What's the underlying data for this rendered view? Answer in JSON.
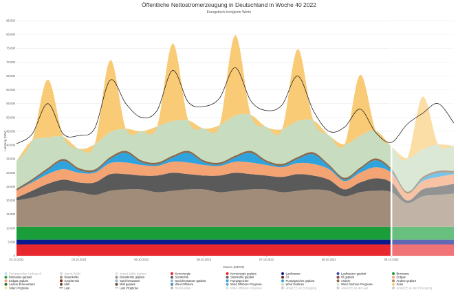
{
  "chart_data": {
    "type": "area",
    "title": "Öffentliche Nettostromerzeugung in Deutschland in Woche 40 2022",
    "subtitle": "Energetisch korrigierte Werte",
    "xlabel": "Datum (MESZ)",
    "ylabel": "Leistung (MW)",
    "ylim": [
      0,
      85000
    ],
    "y_ticks": [
      "0",
      "5.000",
      "10.000",
      "15.000",
      "20.000",
      "25.000",
      "30.000",
      "35.000",
      "40.000",
      "45.000",
      "50.000",
      "55.000",
      "60.000",
      "65.000",
      "70.000",
      "75.000",
      "80.000",
      "85.000"
    ],
    "x_tick_labels": [
      "03.10.2022",
      "04.10.2022",
      "05.10.2022",
      "06.10.2022",
      "07.10.2022",
      "08.10.2022",
      "09.10.2022"
    ],
    "grid": true,
    "forecast_start_hour": 144,
    "x": [
      0,
      6,
      12,
      18,
      24,
      30,
      36,
      42,
      48,
      54,
      60,
      66,
      72,
      78,
      84,
      90,
      96,
      102,
      108,
      114,
      120,
      126,
      132,
      138,
      144,
      150,
      156,
      162,
      168
    ],
    "series": [
      {
        "name": "Kernenergie",
        "color": "#e8282e",
        "values": [
          4100,
          4100,
          4100,
          4100,
          4100,
          4100,
          4100,
          4100,
          4100,
          4100,
          4100,
          4100,
          4100,
          4100,
          4100,
          4100,
          4100,
          4100,
          4100,
          4100,
          4100,
          4100,
          4100,
          4100,
          4100,
          4100,
          4100,
          4100,
          4100
        ]
      },
      {
        "name": "Laufwasser",
        "color": "#0a1a8c",
        "values": [
          1700,
          1700,
          1700,
          1700,
          1700,
          1700,
          1700,
          1700,
          1700,
          1700,
          1700,
          1700,
          1700,
          1700,
          1700,
          1700,
          1700,
          1700,
          1700,
          1700,
          1700,
          1700,
          1700,
          1700,
          1700,
          1700,
          1700,
          1700,
          1700
        ]
      },
      {
        "name": "Biomasse",
        "color": "#1a9e3a",
        "values": [
          4700,
          4700,
          4700,
          4700,
          4700,
          4700,
          4700,
          4700,
          4700,
          4700,
          4700,
          4700,
          4700,
          4700,
          4700,
          4700,
          4700,
          4700,
          4700,
          4700,
          4700,
          4700,
          4700,
          4700,
          4700,
          4700,
          4700,
          4700,
          4700
        ]
      },
      {
        "name": "Braunkohle",
        "color": "#a08c78",
        "values": [
          9500,
          10500,
          12000,
          13000,
          12500,
          11500,
          13000,
          13500,
          13500,
          12500,
          13000,
          13500,
          13500,
          12500,
          13000,
          13500,
          13500,
          12500,
          13000,
          13500,
          13000,
          11000,
          12500,
          13000,
          12500,
          8500,
          11000,
          11500,
          12000
        ]
      },
      {
        "name": "Steinkohle",
        "color": "#5a5a5a",
        "values": [
          1000,
          2500,
          3500,
          4000,
          3500,
          4500,
          6000,
          5500,
          5000,
          6000,
          6500,
          5500,
          5000,
          6000,
          6500,
          5500,
          5000,
          5500,
          6000,
          5000,
          4000,
          2500,
          3500,
          4500,
          3500,
          1000,
          2500,
          3000,
          3500
        ]
      },
      {
        "name": "Erdgas",
        "color": "#f4a373",
        "values": [
          2500,
          3000,
          3500,
          3800,
          3500,
          3500,
          4000,
          4200,
          3800,
          3500,
          4000,
          4200,
          3800,
          3500,
          4000,
          4200,
          3800,
          3500,
          4000,
          4200,
          3800,
          3000,
          3500,
          4000,
          3500,
          2500,
          3000,
          3500,
          3500
        ]
      },
      {
        "name": "Pumpspeicher",
        "color": "#2ea3de",
        "values": [
          0,
          500,
          1500,
          3000,
          1000,
          500,
          1500,
          3500,
          1000,
          500,
          1500,
          3500,
          1000,
          500,
          1500,
          3500,
          1000,
          500,
          1500,
          3500,
          1000,
          500,
          1200,
          2500,
          800,
          0,
          800,
          1500,
          500
        ]
      },
      {
        "name": "Andere",
        "color": "#8a6a4a",
        "values": [
          700,
          700,
          700,
          700,
          700,
          700,
          700,
          700,
          700,
          700,
          700,
          700,
          700,
          700,
          700,
          700,
          700,
          700,
          700,
          700,
          700,
          700,
          700,
          700,
          700,
          700,
          700,
          700,
          700
        ]
      },
      {
        "name": "Wind Onshore",
        "color": "#c8dcbf",
        "values": [
          10000,
          14000,
          11000,
          8000,
          7000,
          9000,
          9000,
          8000,
          10500,
          13000,
          12500,
          11000,
          11500,
          13500,
          14500,
          13000,
          12000,
          12500,
          13000,
          11500,
          10500,
          12000,
          11500,
          10000,
          8000,
          12000,
          10000,
          9500,
          9000
        ]
      },
      {
        "name": "Solar",
        "color": "#f9cb77",
        "values": [
          0,
          0,
          21000,
          0,
          0,
          0,
          26000,
          0,
          0,
          0,
          28000,
          0,
          0,
          0,
          29000,
          0,
          0,
          0,
          26000,
          0,
          0,
          0,
          22000,
          0,
          0,
          0,
          19000,
          0,
          0
        ]
      },
      {
        "name": "Last",
        "color": "#222222",
        "values": [
          40500,
          44000,
          55000,
          44000,
          43500,
          46000,
          63500,
          55000,
          50000,
          52500,
          67000,
          55500,
          54000,
          57000,
          68000,
          56000,
          52500,
          54500,
          65000,
          52500,
          45000,
          46500,
          53000,
          44500,
          41000,
          47500,
          51500,
          55000,
          48000
        ]
      }
    ],
    "legend": {
      "placement": "bottom",
      "entries": [
        {
          "name": "Pumpspeicher Verbrauch",
          "color": "#bfe0f0",
          "faded": true
        },
        {
          "name": "Import Saldo",
          "color": "#d8d8d8",
          "faded": true
        },
        {
          "name": "Import Saldo geplant",
          "color": "#e2e2e2",
          "faded": true
        },
        {
          "name": "Kernenergie",
          "color": "#e8282e",
          "faded": false
        },
        {
          "name": "Kernenergie geplant",
          "color": "#e8282e",
          "faded": false
        },
        {
          "name": "Laufwasser",
          "color": "#0a1a8c",
          "faded": false
        },
        {
          "name": "Laufwasser geplant",
          "color": "#3a4ab0",
          "faded": false
        },
        {
          "name": "Biomasse",
          "color": "#1a9e3a",
          "faded": false
        },
        {
          "name": "Biomasse geplant",
          "color": "#1a9e3a",
          "faded": false
        },
        {
          "name": "Braunkohle",
          "color": "#a08c78",
          "faded": false
        },
        {
          "name": "Braunkohle geplant",
          "color": "#a08c78",
          "faded": false
        },
        {
          "name": "Steinkohle",
          "color": "#5a5a5a",
          "faded": false
        },
        {
          "name": "Steinkohle geplant",
          "color": "#5a5a5a",
          "faded": false
        },
        {
          "name": "Öl",
          "color": "#6a1a1a",
          "faded": false
        },
        {
          "name": "Öl geplant",
          "color": "#8a3a3a",
          "faded": false
        },
        {
          "name": "Erdgas",
          "color": "#f4a373",
          "faded": false
        },
        {
          "name": "Erdgas geplant",
          "color": "#f4a373",
          "faded": false
        },
        {
          "name": "Geothermie",
          "color": "#8a2a1a",
          "faded": false
        },
        {
          "name": "Speicherwasser",
          "color": "#8ab8d8",
          "faded": false
        },
        {
          "name": "Speicherwasser geplant",
          "color": "#8ab8d8",
          "faded": false
        },
        {
          "name": "Pumpspeicher",
          "color": "#2ea3de",
          "faded": false
        },
        {
          "name": "Pumpspeicher geplant",
          "color": "#2ea3de",
          "faded": false
        },
        {
          "name": "Andere",
          "color": "#8a6a4a",
          "faded": false
        },
        {
          "name": "Andere geplant",
          "color": "#b08a6a",
          "faded": false
        },
        {
          "name": "Andere Erneuerbare",
          "color": "#2a6a2a",
          "faded": false
        },
        {
          "name": "Müll",
          "color": "#6a4a2a",
          "faded": false
        },
        {
          "name": "Müll geplant",
          "color": "#6a4a2a",
          "faded": false
        },
        {
          "name": "Wind Offshore",
          "color": "#4a8ab0",
          "faded": false
        },
        {
          "name": "Wind Offshore Prognose",
          "color": "#6aa0c0",
          "faded": false
        },
        {
          "name": "Wind Onshore",
          "color": "#c8dcbf",
          "faded": false
        },
        {
          "name": "Wind Onshore Prognose",
          "color": "#d8e8d0",
          "faded": false
        },
        {
          "name": "Solar",
          "color": "#f9cb77",
          "faded": false
        },
        {
          "name": "Solar Prognose",
          "color": "#fbe0a0",
          "faded": false
        },
        {
          "name": "Last",
          "color": "#222222",
          "faded": false
        },
        {
          "name": "Last Prognose",
          "color": "#888888",
          "faded": false
        },
        {
          "name": "Residuallast",
          "color": "#bbbbbb",
          "faded": true
        },
        {
          "name": "Wind Offshore Prognose",
          "color": "#cfe0ea",
          "faded": true
        },
        {
          "name": "Anteil EE an Erzeugung",
          "color": "#cccccc",
          "faded": true
        },
        {
          "name": "Anteil EE an der Last",
          "color": "#cccccc",
          "faded": true
        },
        {
          "name": "Anteil EE an der Erzeugung",
          "color": "#cccccc",
          "faded": true
        }
      ]
    }
  }
}
